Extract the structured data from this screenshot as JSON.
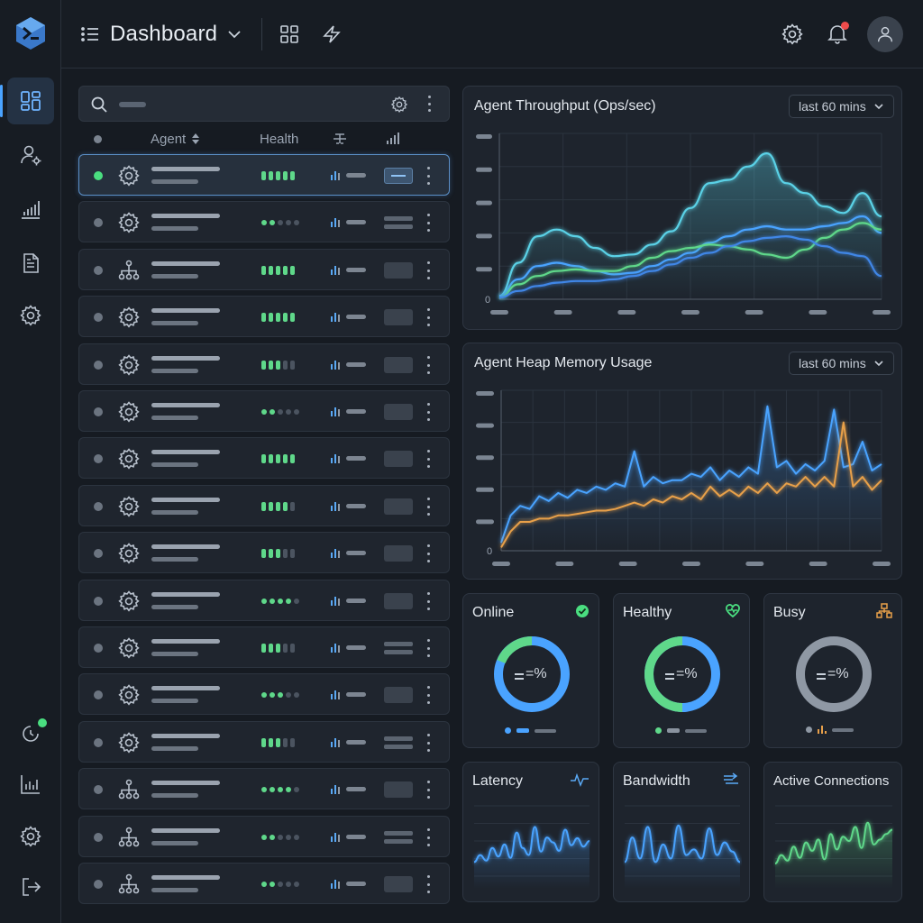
{
  "header": {
    "title": "Dashboard"
  },
  "sidebar": {
    "items": [
      "dashboard",
      "agent-management",
      "analytics",
      "documents",
      "settings"
    ],
    "bottom_items": [
      "activity-status",
      "reports",
      "system-settings",
      "logout"
    ]
  },
  "agent_list": {
    "columns": {
      "agent": "Agent",
      "health": "Health"
    },
    "rows": [
      {
        "online": true,
        "icon": "gear",
        "health": [
          1,
          1,
          1,
          1,
          1
        ],
        "health_style": "bars",
        "tag": "selected"
      },
      {
        "online": false,
        "icon": "gear",
        "health": [
          1,
          1,
          0,
          0,
          0
        ],
        "health_style": "dots",
        "tag": "lines"
      },
      {
        "online": false,
        "icon": "network",
        "health": [
          1,
          1,
          1,
          1,
          1
        ],
        "health_style": "bars",
        "tag": "box"
      },
      {
        "online": false,
        "icon": "gear",
        "health": [
          1,
          1,
          1,
          1,
          1
        ],
        "health_style": "bars",
        "tag": "box"
      },
      {
        "online": false,
        "icon": "gear",
        "health": [
          1,
          1,
          1,
          0,
          0
        ],
        "health_style": "bars",
        "tag": "box"
      },
      {
        "online": false,
        "icon": "gear",
        "health": [
          1,
          1,
          0,
          0,
          0
        ],
        "health_style": "dots",
        "tag": "box"
      },
      {
        "online": false,
        "icon": "gear",
        "health": [
          1,
          1,
          1,
          1,
          1
        ],
        "health_style": "bars",
        "tag": "box"
      },
      {
        "online": false,
        "icon": "gear",
        "health": [
          1,
          1,
          1,
          1,
          0
        ],
        "health_style": "bars",
        "tag": "box"
      },
      {
        "online": false,
        "icon": "gear",
        "health": [
          1,
          1,
          1,
          0,
          0
        ],
        "health_style": "bars",
        "tag": "box"
      },
      {
        "online": false,
        "icon": "gear",
        "health": [
          1,
          1,
          1,
          1,
          0
        ],
        "health_style": "dots",
        "tag": "box"
      },
      {
        "online": false,
        "icon": "gear",
        "health": [
          1,
          1,
          1,
          0,
          0
        ],
        "health_style": "bars",
        "tag": "lines"
      },
      {
        "online": false,
        "icon": "gear",
        "health": [
          1,
          1,
          1,
          0,
          0
        ],
        "health_style": "dots",
        "tag": "box"
      },
      {
        "online": false,
        "icon": "gear",
        "health": [
          1,
          1,
          1,
          0,
          0
        ],
        "health_style": "bars",
        "tag": "lines"
      },
      {
        "online": false,
        "icon": "network",
        "health": [
          1,
          1,
          1,
          1,
          0
        ],
        "health_style": "dots",
        "tag": "box"
      },
      {
        "online": false,
        "icon": "network",
        "health": [
          1,
          1,
          0,
          0,
          0
        ],
        "health_style": "dots",
        "tag": "lines"
      },
      {
        "online": false,
        "icon": "network",
        "health": [
          1,
          1,
          0,
          0,
          0
        ],
        "health_style": "dots",
        "tag": "box"
      }
    ]
  },
  "throughput": {
    "title": "Agent Throughput (Ops/sec)",
    "range": "last 60 mins",
    "y_zero": "0"
  },
  "heap": {
    "title": "Agent Heap Memory Usage",
    "range": "last 60 mins",
    "y_zero": "0"
  },
  "status_cards": [
    {
      "title": "Online",
      "icon": "check-circle-icon",
      "center": "=%"
    },
    {
      "title": "Healthy",
      "icon": "heart-pulse-icon",
      "center": "=%"
    },
    {
      "title": "Busy",
      "icon": "busy-nodes-icon",
      "center": "=%"
    }
  ],
  "metric_cards": [
    {
      "title": "Latency"
    },
    {
      "title": "Bandwidth"
    },
    {
      "title": "Active Connections"
    }
  ],
  "colors": {
    "accent": "#4aa3ff",
    "green": "#5fd88a",
    "cyan": "#5ad1e6",
    "orange": "#e8a04a",
    "alert": "#ef4b4b"
  },
  "chart_data": [
    {
      "type": "area",
      "title": "Agent Throughput (Ops/sec)",
      "x": [
        0,
        1,
        2,
        3,
        4,
        5,
        6,
        7,
        8,
        9,
        10,
        11,
        12,
        13,
        14,
        15,
        16,
        17,
        18,
        19,
        20
      ],
      "series": [
        {
          "values": [
            2,
            22,
            38,
            42,
            38,
            31,
            26,
            27,
            33,
            41,
            55,
            70,
            72,
            80,
            88,
            70,
            64,
            56,
            52,
            64,
            50
          ]
        },
        {
          "values": [
            2,
            12,
            20,
            22,
            20,
            17,
            15,
            16,
            20,
            24,
            28,
            34,
            38,
            42,
            44,
            42,
            42,
            44,
            46,
            50,
            40
          ]
        },
        {
          "values": [
            1,
            9,
            14,
            17,
            18,
            17,
            17,
            20,
            25,
            29,
            31,
            33,
            32,
            30,
            27,
            25,
            30,
            37,
            42,
            46,
            42
          ]
        },
        {
          "values": [
            1,
            5,
            8,
            10,
            11,
            11,
            12,
            14,
            17,
            21,
            25,
            28,
            32,
            35,
            37,
            38,
            36,
            32,
            28,
            26,
            14
          ]
        }
      ],
      "ylim": [
        0,
        100
      ]
    },
    {
      "type": "line",
      "title": "Agent Heap Memory Usage",
      "x": [
        0,
        1,
        2,
        3,
        4,
        5,
        6,
        7,
        8,
        9,
        10,
        11,
        12,
        13,
        14,
        15,
        16,
        17,
        18,
        19,
        20,
        21,
        22,
        23,
        24,
        25,
        26,
        27,
        28,
        29,
        30,
        31,
        32,
        33,
        34,
        35,
        36,
        37,
        38,
        39,
        40
      ],
      "series": [
        {
          "values": [
            5,
            22,
            28,
            26,
            34,
            31,
            36,
            33,
            38,
            36,
            40,
            38,
            42,
            40,
            62,
            40,
            46,
            42,
            44,
            44,
            48,
            46,
            52,
            44,
            50,
            46,
            52,
            48,
            90,
            52,
            56,
            48,
            54,
            50,
            56,
            88,
            52,
            54,
            68,
            50,
            54
          ]
        },
        {
          "values": [
            2,
            12,
            18,
            18,
            20,
            20,
            22,
            22,
            23,
            24,
            25,
            25,
            26,
            28,
            30,
            28,
            32,
            30,
            34,
            32,
            36,
            32,
            40,
            34,
            38,
            34,
            40,
            36,
            42,
            36,
            42,
            40,
            46,
            40,
            46,
            40,
            80,
            40,
            46,
            38,
            44
          ]
        }
      ],
      "ylim": [
        0,
        100
      ]
    },
    {
      "type": "line",
      "title": "Latency",
      "x": [
        0,
        1,
        2,
        3,
        4,
        5,
        6,
        7,
        8,
        9,
        10,
        11,
        12,
        13,
        14,
        15,
        16,
        17,
        18,
        19
      ],
      "values": [
        20,
        30,
        22,
        40,
        28,
        45,
        26,
        62,
        40,
        30,
        70,
        35,
        55,
        48,
        36,
        66,
        44,
        54,
        42,
        50
      ],
      "ylim": [
        0,
        100
      ]
    },
    {
      "type": "line",
      "title": "Bandwidth",
      "x": [
        0,
        1,
        2,
        3,
        4,
        5,
        6,
        7,
        8,
        9,
        10,
        11,
        12,
        13,
        14,
        15
      ],
      "values": [
        20,
        55,
        25,
        70,
        20,
        45,
        25,
        72,
        30,
        38,
        25,
        68,
        30,
        48,
        35,
        20
      ],
      "ylim": [
        0,
        100
      ]
    },
    {
      "type": "line",
      "title": "Active Connections",
      "x": [
        0,
        1,
        2,
        3,
        4,
        5,
        6,
        7,
        8,
        9,
        10,
        11,
        12,
        13,
        14,
        15,
        16,
        17,
        18,
        19
      ],
      "values": [
        18,
        30,
        22,
        42,
        26,
        48,
        36,
        52,
        24,
        60,
        38,
        56,
        50,
        70,
        40,
        76,
        45,
        52,
        60,
        66
      ],
      "ylim": [
        0,
        100
      ]
    }
  ]
}
